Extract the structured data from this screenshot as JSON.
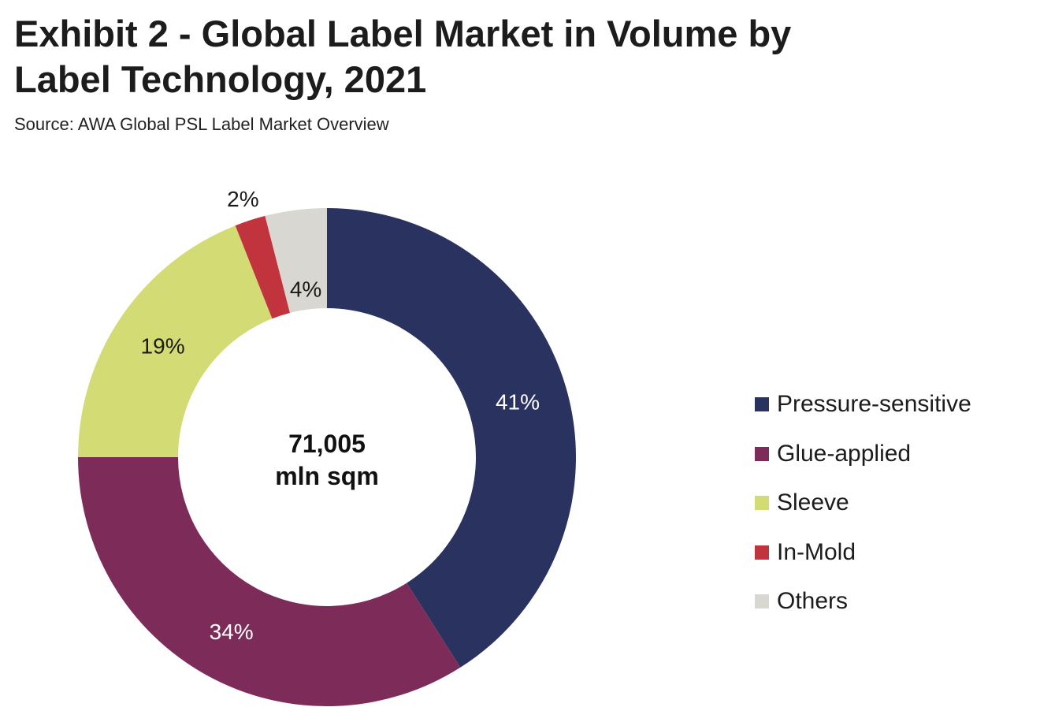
{
  "header": {
    "title_line1": "Exhibit 2 - Global Label Market in Volume by",
    "title_line2": "Label Technology, 2021",
    "source": "Source: AWA Global PSL Label Market Overview"
  },
  "chart_data": {
    "type": "pie",
    "style": "donut",
    "center_label_line1": "71,005",
    "center_label_line2": "mln sqm",
    "legend_position": "right",
    "slices": [
      {
        "name": "Pressure-sensitive",
        "value": 41,
        "label": "41%",
        "color": "#2a335f",
        "label_color": "#ffffff"
      },
      {
        "name": "Glue-applied",
        "value": 34,
        "label": "34%",
        "color": "#7d2c5a",
        "label_color": "#ffffff"
      },
      {
        "name": "Sleeve",
        "value": 19,
        "label": "19%",
        "color": "#d3dc74",
        "label_color": "#1a1a1a"
      },
      {
        "name": "In-Mold",
        "value": 2,
        "label": "2%",
        "color": "#c2343d",
        "label_color": "#1a1a1a"
      },
      {
        "name": "Others",
        "value": 4,
        "label": "4%",
        "color": "#d9d7d1",
        "label_color": "#1a1a1a"
      }
    ]
  }
}
